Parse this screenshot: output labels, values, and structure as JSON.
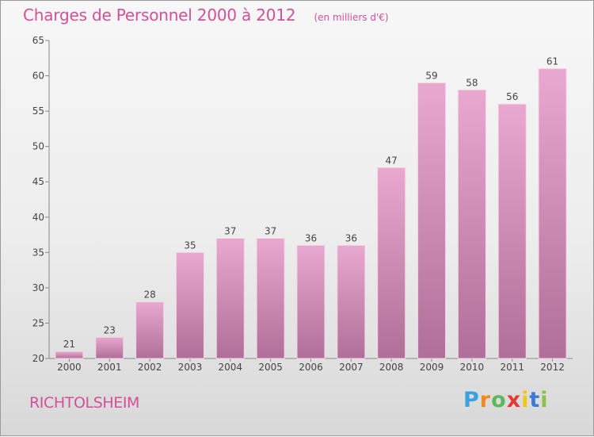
{
  "header": {
    "title": "Charges de Personnel 2000 à 2012",
    "unit": "(en milliers d'€)"
  },
  "footer": {
    "commune": "RICHTOLSHEIM",
    "logo_text": "Proxiti"
  },
  "colors": {
    "title": "#d2509a",
    "bar_top": "#e8a8cf",
    "bar_bottom": "#b06f98"
  },
  "chart_data": {
    "type": "bar",
    "categories": [
      "2000",
      "2001",
      "2002",
      "2003",
      "2004",
      "2005",
      "2006",
      "2007",
      "2008",
      "2009",
      "2010",
      "2011",
      "2012"
    ],
    "values": [
      21,
      23,
      28,
      35,
      37,
      37,
      36,
      36,
      47,
      59,
      58,
      56,
      61
    ],
    "title": "Charges de Personnel 2000 à 2012",
    "ylim": [
      20,
      65
    ],
    "yticks": [
      20,
      25,
      30,
      35,
      40,
      45,
      50,
      55,
      60,
      65
    ],
    "grid": false,
    "legend": "none"
  }
}
